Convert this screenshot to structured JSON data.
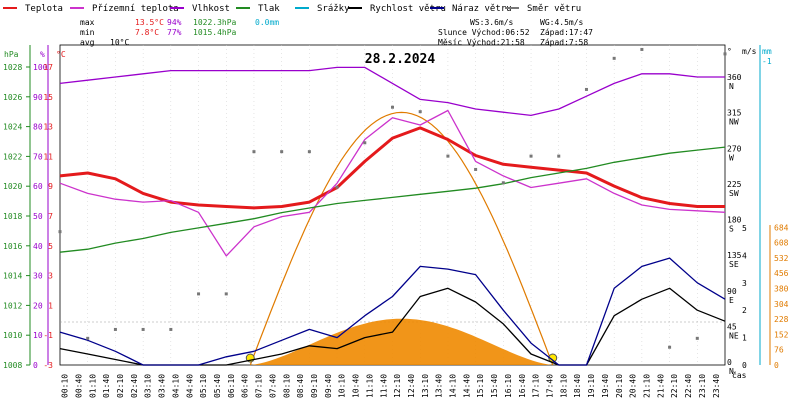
{
  "title": "28.2.2024",
  "legend": [
    {
      "label": "Teplota",
      "color": "#e41a1c"
    },
    {
      "label": "Přízemní teplota",
      "color": "#cc33cc"
    },
    {
      "label": "Vlhkost",
      "color": "#9900cc"
    },
    {
      "label": "Tlak",
      "color": "#228B22"
    },
    {
      "label": "Srážky",
      "color": "#00aacc"
    },
    {
      "label": "Rychlost větru",
      "color": "#000000"
    },
    {
      "label": "Náraz větru",
      "color": "#00008b"
    },
    {
      "label": "Směr větru",
      "color": "#777777"
    }
  ],
  "stats": {
    "max_label": "max",
    "max_temp": "13.5°C",
    "max_hum": "94%",
    "max_press": "1022.3hPa",
    "max_rain": "0.0mm",
    "min_label": "min",
    "min_temp": "7.8°C",
    "min_hum": "77%",
    "min_press": "1015.4hPa",
    "avg_label": "avg",
    "avg_temp": "10°C",
    "ws": "WS:3.6m/s",
    "wg": "WG:4.5m/s",
    "sun": "Slunce Východ:06:52",
    "sun_set": "Západ:17:47",
    "moon": "Měsíc  Východ:21:58",
    "moon_set": "Západ:7:58"
  },
  "axes": {
    "hpa_label": "hPa",
    "pct_label": "%",
    "c_label": "°C",
    "deg_label": "°",
    "ms_label": "m/s",
    "mm_label": "mm",
    "time_label": "čas",
    "hpa_ticks": [
      "1008",
      "1010",
      "1012",
      "1014",
      "1016",
      "1018",
      "1020",
      "1022",
      "1024",
      "1026",
      "1028"
    ],
    "pct_ticks": [
      "0",
      "10",
      "20",
      "30",
      "40",
      "50",
      "60",
      "70",
      "80",
      "90",
      "100"
    ],
    "c_ticks": [
      "-3",
      "-1",
      "1",
      "3",
      "5",
      "7",
      "9",
      "11",
      "13",
      "15",
      "17"
    ],
    "dir_ticks": [
      "0",
      "45",
      "90",
      "135",
      "180",
      "225",
      "270",
      "315",
      "360"
    ],
    "dir_names": [
      "N",
      "NE",
      "E",
      "SE",
      "S",
      "SW",
      "W",
      "NW",
      "N"
    ],
    "ms_ticks": [
      "0",
      "1",
      "2",
      "3",
      "4",
      "5"
    ],
    "mm_top": "-1",
    "solar_ticks": [
      "0",
      "76",
      "152",
      "228",
      "304",
      "380",
      "456",
      "532",
      "608",
      "684"
    ],
    "time_ticks": [
      "00:10",
      "00:40",
      "01:10",
      "01:40",
      "02:10",
      "02:40",
      "03:10",
      "03:40",
      "04:10",
      "04:40",
      "05:10",
      "05:40",
      "06:10",
      "06:40",
      "07:10",
      "07:40",
      "08:10",
      "08:40",
      "09:10",
      "09:40",
      "10:10",
      "10:40",
      "11:10",
      "11:40",
      "12:10",
      "12:40",
      "13:10",
      "13:40",
      "14:10",
      "14:40",
      "15:10",
      "15:40",
      "16:10",
      "16:40",
      "17:10",
      "17:40",
      "18:10",
      "18:40",
      "19:10",
      "19:40",
      "20:10",
      "20:40",
      "21:10",
      "21:40",
      "22:10",
      "22:40",
      "23:10",
      "23:40"
    ]
  },
  "chart_data": {
    "type": "line",
    "title": "28.2.2024",
    "xlabel": "čas",
    "x_hours": [
      0,
      1,
      2,
      3,
      4,
      5,
      6,
      7,
      8,
      9,
      10,
      11,
      12,
      13,
      14,
      15,
      16,
      17,
      18,
      19,
      20,
      21,
      22,
      23,
      24
    ],
    "series": [
      {
        "name": "Teplota",
        "unit": "°C",
        "color": "#e41a1c",
        "values": [
          10.0,
          10.2,
          9.8,
          8.8,
          8.2,
          8.0,
          7.9,
          7.8,
          7.9,
          8.2,
          9.2,
          11.0,
          12.6,
          13.3,
          12.5,
          11.4,
          10.8,
          10.6,
          10.4,
          10.2,
          9.3,
          8.5,
          8.1,
          7.9,
          7.9
        ]
      },
      {
        "name": "Přízemní teplota",
        "unit": "°C",
        "color": "#cc33cc",
        "values": [
          9.5,
          8.8,
          8.4,
          8.2,
          8.3,
          7.5,
          4.5,
          6.5,
          7.2,
          7.5,
          9.5,
          12.5,
          14.0,
          13.5,
          14.5,
          11.0,
          10.0,
          9.2,
          9.5,
          9.8,
          8.8,
          8.0,
          7.7,
          7.6,
          7.5
        ]
      },
      {
        "name": "Vlhkost",
        "unit": "%",
        "color": "#9900cc",
        "values": [
          88,
          89,
          90,
          91,
          92,
          92,
          92,
          92,
          92,
          92,
          93,
          93,
          88,
          83,
          82,
          80,
          79,
          78,
          80,
          84,
          88,
          91,
          91,
          90,
          90
        ]
      },
      {
        "name": "Tlak",
        "unit": "hPa",
        "color": "#228B22",
        "values": [
          1015.4,
          1015.6,
          1016.0,
          1016.3,
          1016.7,
          1017.0,
          1017.3,
          1017.6,
          1018.0,
          1018.3,
          1018.6,
          1018.8,
          1019.0,
          1019.2,
          1019.4,
          1019.6,
          1019.9,
          1020.3,
          1020.6,
          1020.9,
          1021.3,
          1021.6,
          1021.9,
          1022.1,
          1022.3
        ]
      },
      {
        "name": "Rychlost větru",
        "unit": "m/s",
        "color": "#000000",
        "values": [
          0.6,
          0.4,
          0.2,
          0.0,
          0.0,
          0.0,
          0.0,
          0.2,
          0.4,
          0.7,
          0.6,
          1.0,
          1.2,
          2.5,
          2.8,
          2.3,
          1.5,
          0.4,
          0.0,
          0.0,
          1.8,
          2.4,
          2.8,
          2.0,
          1.6
        ]
      },
      {
        "name": "Náraz větru",
        "unit": "m/s",
        "color": "#00008b",
        "values": [
          1.2,
          0.9,
          0.5,
          0.0,
          0.0,
          0.0,
          0.3,
          0.5,
          0.9,
          1.3,
          1.0,
          1.8,
          2.5,
          3.6,
          3.5,
          3.3,
          2.0,
          0.8,
          0.0,
          0.0,
          2.8,
          3.6,
          3.9,
          3.0,
          2.4
        ]
      },
      {
        "name": "Směr větru",
        "unit": "°",
        "color": "#777777",
        "values": [
          150,
          30,
          40,
          40,
          40,
          80,
          80,
          240,
          240,
          240,
          200,
          250,
          290,
          285,
          235,
          220,
          205,
          235,
          235,
          310,
          345,
          355,
          20,
          30,
          350
        ]
      }
    ],
    "ylim_temp": [
      -3,
      19
    ],
    "ylim_humidity": [
      0,
      100
    ],
    "ylim_pressure": [
      1008,
      1029
    ],
    "ylim_direction": [
      0,
      360
    ],
    "ylim_wind": [
      0,
      5
    ],
    "ylim_solar": [
      0,
      760
    ],
    "solar_radiation_peak": 600,
    "sunrise": "06:52",
    "sunset": "17:47"
  }
}
